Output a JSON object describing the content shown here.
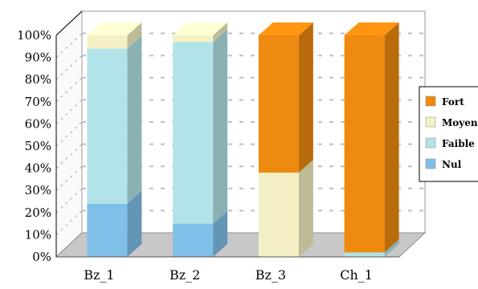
{
  "chart_data": {
    "type": "bar",
    "stacked": true,
    "percent": true,
    "three_d": true,
    "title": "",
    "xlabel": "",
    "ylabel": "",
    "ylim": [
      0,
      100
    ],
    "y_ticks": [
      "0%",
      "10%",
      "20%",
      "30%",
      "40%",
      "50%",
      "60%",
      "70%",
      "80%",
      "90%",
      "100%"
    ],
    "categories": [
      "Bz_1",
      "Bz_2",
      "Bz_3",
      "Ch_1"
    ],
    "series": [
      {
        "name": "Nul",
        "color": "#7fbfe8",
        "values": [
          24,
          15,
          0,
          0
        ]
      },
      {
        "name": "Faible",
        "color": "#b2e3e8",
        "values": [
          70,
          82,
          0,
          2
        ]
      },
      {
        "name": "Moyen",
        "color": "#f4f0c4",
        "values": [
          6,
          3,
          38,
          0
        ]
      },
      {
        "name": "Fort",
        "color": "#ef8a10",
        "values": [
          0,
          0,
          62,
          98
        ]
      }
    ],
    "legend": {
      "position": "right",
      "order": [
        "Fort",
        "Moyen",
        "Faible",
        "Nul"
      ],
      "labels": [
        "Fort",
        "Moyen",
        "Faible",
        "Nul"
      ]
    },
    "grid": true,
    "colors": {
      "wall": "#ffffff",
      "floor": "#c8c8c8",
      "grid": "#bfbfbf"
    }
  }
}
